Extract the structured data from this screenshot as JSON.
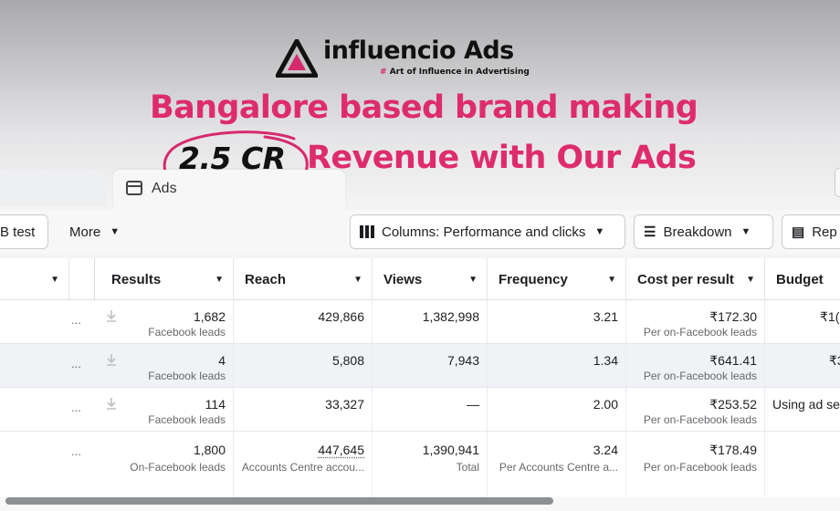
{
  "brand": {
    "name": "influencio Ads",
    "tagline_hash": "#",
    "tagline": "Art of Influence in Advertising"
  },
  "headline": {
    "line1": "Bangalore based brand making",
    "highlight": "2.5 CR",
    "line2": "Revenue with Our Ads"
  },
  "tabs": {
    "ads_label": "Ads"
  },
  "toolbar": {
    "ab_test": "B test",
    "more": "More",
    "columns": "Columns: Performance and clicks",
    "breakdown": "Breakdown",
    "reports": "Rep"
  },
  "table": {
    "headers": [
      "Results",
      "Reach",
      "Views",
      "Frequency",
      "Cost per result",
      "Budget"
    ],
    "rows": [
      {
        "results": "1,682",
        "results_sub": "Facebook leads",
        "reach": "429,866",
        "views": "1,382,998",
        "frequency": "3.21",
        "cpr": "₹172.30",
        "cpr_sub": "Per on-Facebook leads",
        "budget": "₹1("
      },
      {
        "results": "4",
        "results_sub": "Facebook leads",
        "reach": "5,808",
        "views": "7,943",
        "frequency": "1.34",
        "cpr": "₹641.41",
        "cpr_sub": "Per on-Facebook leads",
        "budget": "₹3"
      },
      {
        "results": "114",
        "results_sub": "Facebook leads",
        "reach": "33,327",
        "views": "—",
        "frequency": "2.00",
        "cpr": "₹253.52",
        "cpr_sub": "Per on-Facebook leads",
        "budget": "Using ad se"
      }
    ],
    "total": {
      "results": "1,800",
      "results_sub": "On-Facebook leads",
      "reach": "447,645",
      "reach_sub": "Accounts Centre accou...",
      "views": "1,390,941",
      "views_sub": "Total",
      "frequency": "3.24",
      "frequency_sub": "Per Accounts Centre a...",
      "cpr": "₹178.49",
      "cpr_sub": "Per on-Facebook leads"
    }
  },
  "colors": {
    "headline": "#de2c6b",
    "accent": "#d62a6e"
  }
}
